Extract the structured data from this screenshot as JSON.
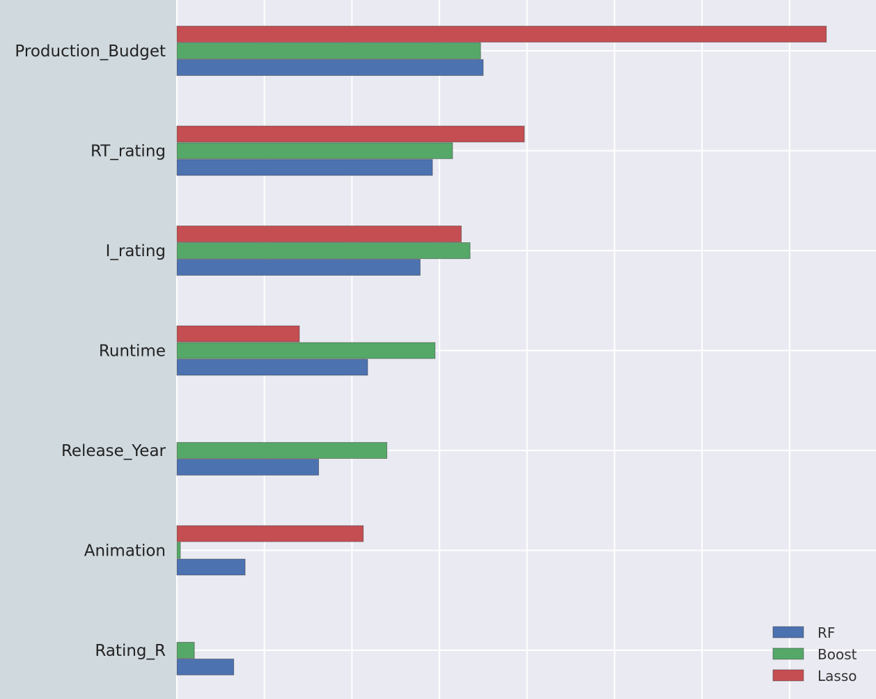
{
  "chart_data": {
    "type": "bar",
    "orientation": "horizontal",
    "title": "",
    "xlabel": "",
    "ylabel": "",
    "categories": [
      "Production_Budget",
      "RT_rating",
      "I_rating",
      "Runtime",
      "Release_Year",
      "Animation",
      "Rating_R"
    ],
    "series": [
      {
        "name": "RF",
        "color": "#4c72b0",
        "values": [
          3.5,
          2.92,
          2.78,
          2.18,
          1.62,
          0.78,
          0.65
        ]
      },
      {
        "name": "Boost",
        "color": "#55a868",
        "values": [
          3.47,
          3.15,
          3.35,
          2.95,
          2.4,
          0.04,
          0.2
        ]
      },
      {
        "name": "Lasso",
        "color": "#c44e52",
        "values": [
          7.42,
          3.97,
          3.25,
          1.4,
          0.0,
          2.13,
          0.0
        ]
      }
    ],
    "xlim": [
      0,
      7.9
    ],
    "grid": true,
    "legend_position": "bottom-right"
  },
  "colors": {
    "plot_background": "#eaeaf2",
    "page_background": "#d0d9de",
    "grid": "#ffffff"
  }
}
